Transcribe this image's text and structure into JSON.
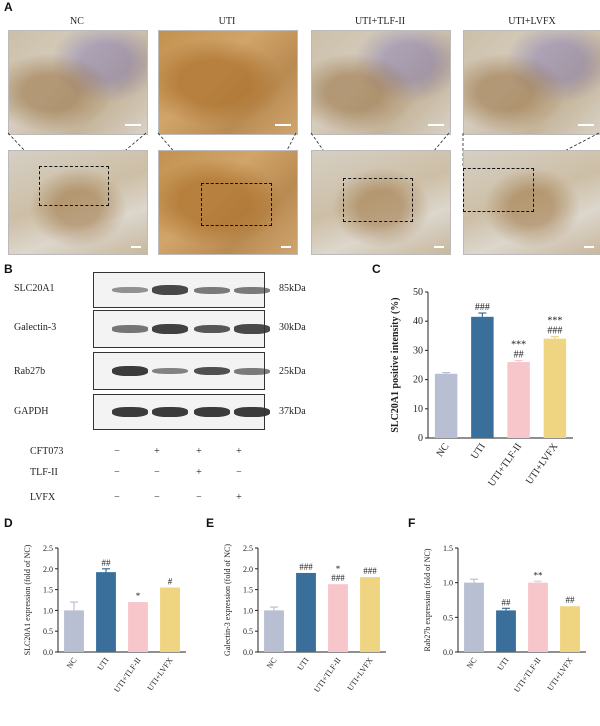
{
  "panel_labels": {
    "A": "A",
    "B": "B",
    "C": "C",
    "D": "D",
    "E": "E",
    "F": "F"
  },
  "panel_a": {
    "groups": [
      "NC",
      "UTI",
      "UTI+TLF-II",
      "UTI+LVFX"
    ]
  },
  "panel_b": {
    "proteins": [
      {
        "name": "SLC20A1",
        "kda": "85kDa"
      },
      {
        "name": "Galectin-3",
        "kda": "30kDa"
      },
      {
        "name": "Rab27b",
        "kda": "25kDa"
      },
      {
        "name": "GAPDH",
        "kda": "37kDa"
      }
    ],
    "band_intensity": {
      "SLC20A1": [
        0.35,
        0.85,
        0.5,
        0.5
      ],
      "Galectin-3": [
        0.55,
        0.9,
        0.75,
        0.85
      ],
      "Rab27b": [
        0.95,
        0.45,
        0.8,
        0.5
      ],
      "GAPDH": [
        0.95,
        0.95,
        0.95,
        0.95
      ]
    },
    "conditions": [
      {
        "name": "CFT073",
        "signs": [
          "−",
          "+",
          "+",
          "+"
        ]
      },
      {
        "name": "TLF-II",
        "signs": [
          "−",
          "−",
          "+",
          "−"
        ]
      },
      {
        "name": "LVFX",
        "signs": [
          "−",
          "−",
          "−",
          "+"
        ]
      }
    ]
  },
  "colors": {
    "NC": "#b9bfd3",
    "UTI": "#3a6f9c",
    "UTI+TLF-II": "#f6c6cb",
    "UTI+LVFX": "#efd482"
  },
  "chart_data": [
    {
      "panel": "C",
      "type": "bar",
      "categories": [
        "NC",
        "UTI",
        "UTI+TLF-II",
        "UTI+LVFX"
      ],
      "values": [
        22,
        41.5,
        26,
        34
      ],
      "errors": [
        0.4,
        1.3,
        0.5,
        0.7
      ],
      "ylabel": "SLC20A1  positive intensity (%)",
      "ylim": [
        0,
        50
      ],
      "yticks": [
        "0",
        "10",
        "20",
        "30",
        "40",
        "50"
      ],
      "annotations": [
        [
          "",
          ""
        ],
        [
          "###",
          ""
        ],
        [
          "***",
          "##"
        ],
        [
          "***",
          "###"
        ]
      ]
    },
    {
      "panel": "D",
      "type": "bar",
      "categories": [
        "NC",
        "UTI",
        "UTI+TLF-II",
        "UTI+LVFX"
      ],
      "values": [
        1.0,
        1.92,
        1.2,
        1.55
      ],
      "errors": [
        0.2,
        0.08,
        0.0,
        0.0
      ],
      "ylabel": "SLC20A1 expression (fold of NC)",
      "ylim": [
        0,
        2.5
      ],
      "yticks": [
        "0.0",
        "0.5",
        "1.0",
        "1.5",
        "2.0",
        "2.5"
      ],
      "annotations": [
        [
          ""
        ],
        [
          "##"
        ],
        [
          "*"
        ],
        [
          "#"
        ]
      ]
    },
    {
      "panel": "E",
      "type": "bar",
      "categories": [
        "NC",
        "UTI",
        "UTI+TLF-II",
        "UTI+LVFX"
      ],
      "values": [
        1.0,
        1.9,
        1.63,
        1.8
      ],
      "errors": [
        0.08,
        0.0,
        0.0,
        0.0
      ],
      "ylabel": "Galectin-3 expression (fold of NC)",
      "ylim": [
        0,
        2.5
      ],
      "yticks": [
        "0.0",
        "0.5",
        "1.0",
        "1.5",
        "2.0",
        "2.5"
      ],
      "annotations": [
        [
          ""
        ],
        [
          "###"
        ],
        [
          "*",
          "###"
        ],
        [
          "###"
        ]
      ]
    },
    {
      "panel": "F",
      "type": "bar",
      "categories": [
        "NC",
        "UTI",
        "UTI+TLF-II",
        "UTI+LVFX"
      ],
      "values": [
        1.0,
        0.6,
        1.0,
        0.66
      ],
      "errors": [
        0.05,
        0.03,
        0.02,
        0.0
      ],
      "ylabel": "Rab27b expression (fold of NC)",
      "ylim": [
        0,
        1.5
      ],
      "yticks": [
        "0.0",
        "0.5",
        "1.0",
        "1.5"
      ],
      "annotations": [
        [
          ""
        ],
        [
          "##"
        ],
        [
          "**"
        ],
        [
          "##"
        ]
      ]
    }
  ]
}
